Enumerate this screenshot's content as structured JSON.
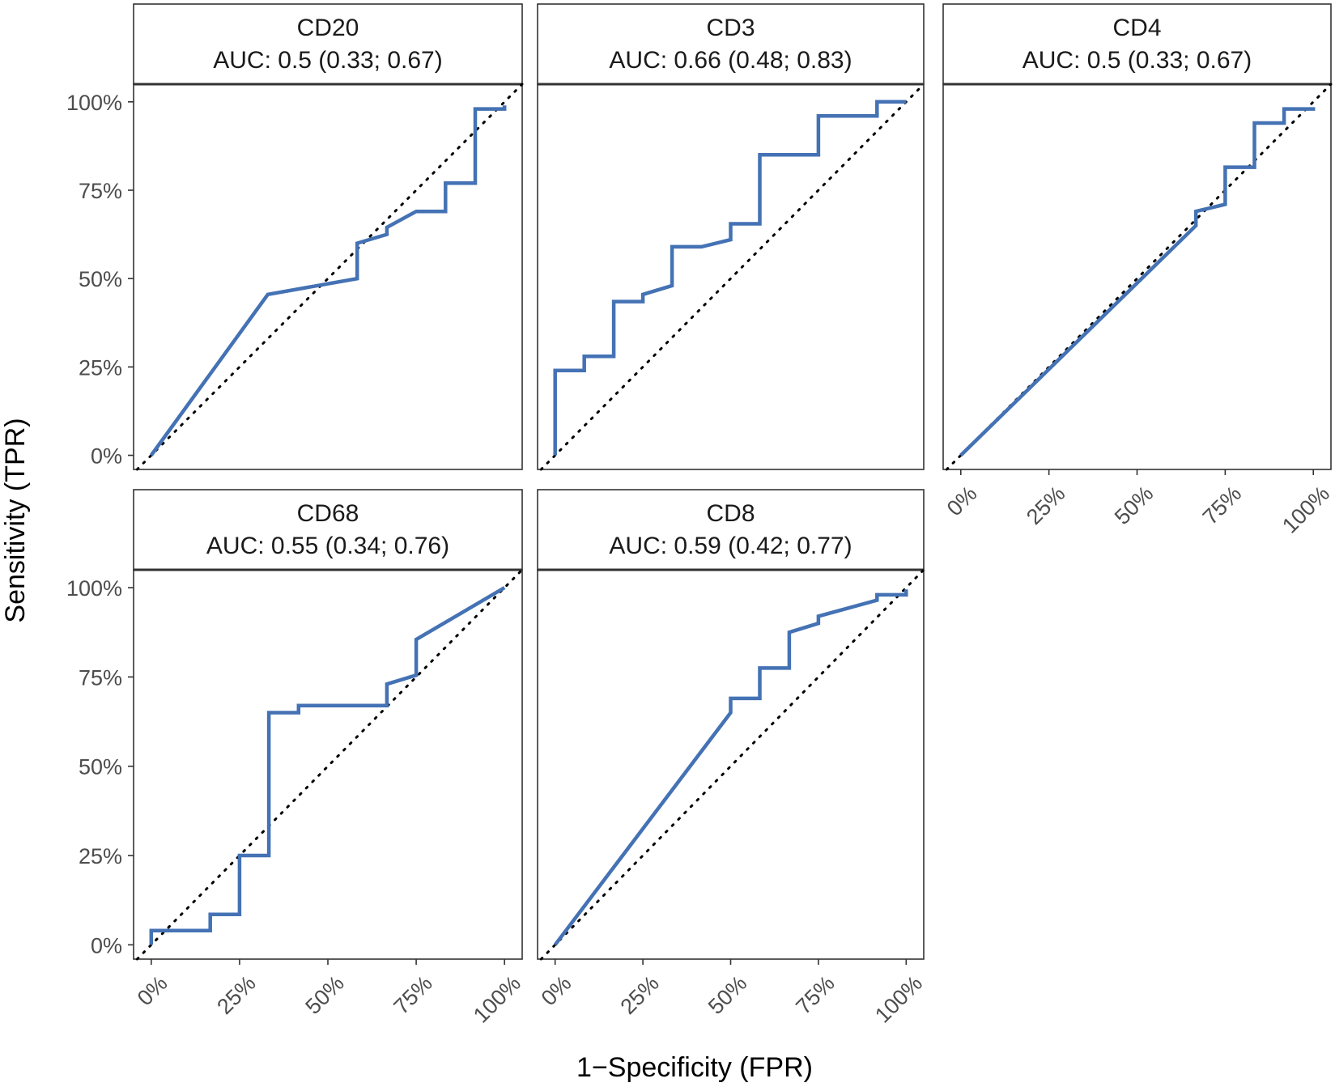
{
  "colors": {
    "roc_line": "#4472b4",
    "diagonal": "#000000"
  },
  "axis_titles": {
    "x": "1−Specificity (FPR)",
    "y": "Sensitivity (TPR)"
  },
  "chart_data": [
    {
      "type": "line",
      "panel": "CD20",
      "title_line1": "CD20",
      "title_line2": "AUC: 0.5 (0.33; 0.67)",
      "x": [
        0,
        0.33,
        0.583,
        0.583,
        0.667,
        0.667,
        0.75,
        0.833,
        0.833,
        0.917,
        0.917,
        1.0,
        1.0
      ],
      "y": [
        0,
        0.455,
        0.5,
        0.6,
        0.625,
        0.645,
        0.69,
        0.69,
        0.77,
        0.77,
        0.98,
        0.98,
        0.99
      ],
      "x_ticks": [
        "0%",
        "25%",
        "50%",
        "75%",
        "100%"
      ],
      "y_ticks": [
        "0%",
        "25%",
        "50%",
        "75%",
        "100%"
      ],
      "xlim": [
        -0.05,
        1.05
      ],
      "ylim": [
        -0.04,
        1.05
      ]
    },
    {
      "type": "line",
      "panel": "CD3",
      "title_line1": "CD3",
      "title_line2": "AUC: 0.66 (0.48; 0.83)",
      "x": [
        0,
        0,
        0.083,
        0.083,
        0.167,
        0.167,
        0.25,
        0.25,
        0.333,
        0.333,
        0.417,
        0.5,
        0.5,
        0.583,
        0.583,
        0.75,
        0.75,
        0.917,
        0.917,
        1.0
      ],
      "y": [
        0,
        0.24,
        0.24,
        0.28,
        0.28,
        0.435,
        0.435,
        0.455,
        0.48,
        0.59,
        0.59,
        0.61,
        0.655,
        0.655,
        0.85,
        0.85,
        0.96,
        0.96,
        1.0,
        1.0
      ],
      "x_ticks": [
        "0%",
        "25%",
        "50%",
        "75%",
        "100%"
      ],
      "y_ticks": [
        "0%",
        "25%",
        "50%",
        "75%",
        "100%"
      ],
      "xlim": [
        -0.05,
        1.05
      ],
      "ylim": [
        -0.04,
        1.05
      ]
    },
    {
      "type": "line",
      "panel": "CD4",
      "title_line1": "CD4",
      "title_line2": "AUC: 0.5 (0.33; 0.67)",
      "x": [
        0,
        0.667,
        0.667,
        0.75,
        0.75,
        0.833,
        0.833,
        0.917,
        0.917,
        1.0,
        1.0
      ],
      "y": [
        0,
        0.65,
        0.69,
        0.71,
        0.815,
        0.815,
        0.94,
        0.94,
        0.98,
        0.98,
        0.985
      ],
      "x_ticks": [
        "0%",
        "25%",
        "50%",
        "75%",
        "100%"
      ],
      "y_ticks": [
        "0%",
        "25%",
        "50%",
        "75%",
        "100%"
      ],
      "xlim": [
        -0.05,
        1.05
      ],
      "ylim": [
        -0.04,
        1.05
      ]
    },
    {
      "type": "line",
      "panel": "CD68",
      "title_line1": "CD68",
      "title_line2": "AUC: 0.55 (0.34; 0.76)",
      "x": [
        0,
        0,
        0.167,
        0.167,
        0.25,
        0.25,
        0.333,
        0.333,
        0.417,
        0.417,
        0.667,
        0.667,
        0.75,
        0.75,
        1.0
      ],
      "y": [
        0,
        0.04,
        0.04,
        0.085,
        0.085,
        0.25,
        0.25,
        0.65,
        0.65,
        0.67,
        0.67,
        0.73,
        0.755,
        0.855,
        1.0
      ],
      "x_ticks": [
        "0%",
        "25%",
        "50%",
        "75%",
        "100%"
      ],
      "y_ticks": [
        "0%",
        "25%",
        "50%",
        "75%",
        "100%"
      ],
      "xlim": [
        -0.05,
        1.05
      ],
      "ylim": [
        -0.04,
        1.05
      ]
    },
    {
      "type": "line",
      "panel": "CD8",
      "title_line1": "CD8",
      "title_line2": "AUC: 0.59 (0.42; 0.77)",
      "x": [
        0,
        0.5,
        0.5,
        0.583,
        0.583,
        0.667,
        0.667,
        0.75,
        0.75,
        0.917,
        0.917,
        1.0,
        1.0
      ],
      "y": [
        0,
        0.65,
        0.69,
        0.69,
        0.775,
        0.775,
        0.875,
        0.9,
        0.92,
        0.965,
        0.98,
        0.98,
        0.995
      ],
      "x_ticks": [
        "0%",
        "25%",
        "50%",
        "75%",
        "100%"
      ],
      "y_ticks": [
        "0%",
        "25%",
        "50%",
        "75%",
        "100%"
      ],
      "xlim": [
        -0.05,
        1.05
      ],
      "ylim": [
        -0.04,
        1.05
      ]
    }
  ]
}
